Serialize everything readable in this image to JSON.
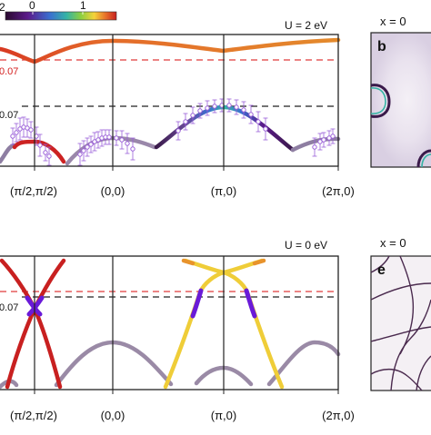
{
  "colorbar": {
    "min_label": "0",
    "max_label": "1",
    "edge_label": "2",
    "colors": [
      "#2a0a2e",
      "#5b1a8a",
      "#3b6fd0",
      "#35b3a5",
      "#8ccf3f",
      "#f4d23a",
      "#e8732b",
      "#c81f1f"
    ]
  },
  "top_panel": {
    "u_label": "U = 2 eV",
    "red_level_label": "0.07",
    "black_level_label": "0.07",
    "colors": {
      "red_dash": "#e03a3a",
      "black_dash": "#222222",
      "error_bars": "#9a5fd8"
    }
  },
  "bottom_panel": {
    "u_label": "U = 0 eV",
    "black_level_label": "0.07"
  },
  "k_path_ticks": [
    "(π/2,π/2)",
    "(0,0)",
    "(π,0)",
    "(2π,0)"
  ],
  "side_panels": [
    {
      "letter": "b",
      "x_label": "x = 0"
    },
    {
      "letter": "e",
      "x_label": "x = 0"
    }
  ]
}
